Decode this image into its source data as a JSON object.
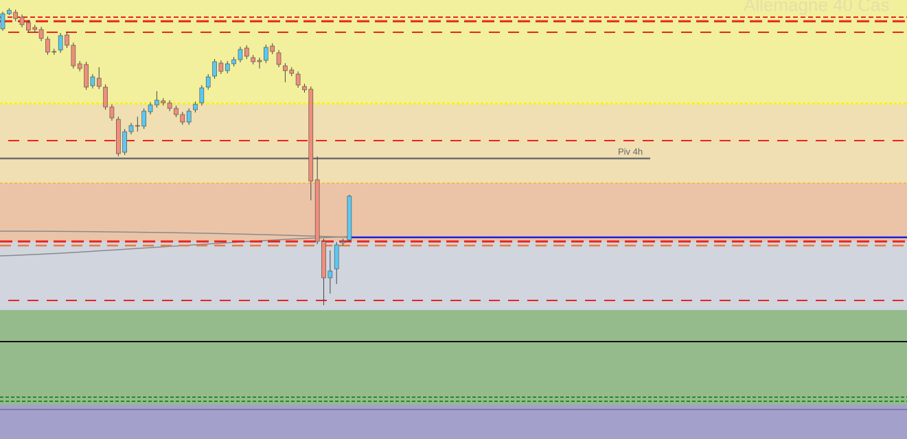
{
  "chart_data": {
    "type": "candlestick",
    "title": "Allemagne 40 Cas",
    "up_color": "#5bc8f2",
    "down_color": "#ef8e7c",
    "ylim": [
      0,
      640
    ],
    "open": [
      598,
      620,
      622,
      615,
      607,
      600,
      597,
      583,
      565,
      567,
      589,
      574,
      547,
      546,
      515,
      526,
      513,
      484,
      466,
      418,
      448,
      457,
      456,
      477,
      487,
      493,
      490,
      482,
      473,
      462,
      480,
      490,
      513,
      529,
      548,
      537,
      547,
      553,
      570,
      556,
      552,
      552,
      573,
      563,
      544,
      538,
      532,
      514,
      510,
      378,
      288,
      235,
      248,
      288,
      290
    ],
    "high": [
      623,
      628,
      626,
      619,
      611,
      604,
      601,
      587,
      569,
      592,
      593,
      578,
      551,
      550,
      532,
      542,
      517,
      488,
      470,
      452,
      461,
      470,
      482,
      491,
      507,
      497,
      494,
      486,
      477,
      482,
      492,
      516,
      532,
      554,
      552,
      551,
      557,
      572,
      574,
      560,
      556,
      575,
      577,
      567,
      548,
      542,
      536,
      518,
      514,
      412,
      292,
      275,
      287,
      292,
      356
    ],
    "low": [
      595,
      618,
      609,
      600,
      592,
      593,
      580,
      560,
      560,
      563,
      570,
      540,
      536,
      509,
      511,
      510,
      480,
      464,
      412,
      414,
      444,
      448,
      452,
      473,
      483,
      486,
      478,
      469,
      458,
      458,
      476,
      486,
      509,
      525,
      532,
      533,
      543,
      549,
      554,
      546,
      540,
      548,
      561,
      542,
      520,
      529,
      512,
      505,
      348,
      284,
      195,
      212,
      226,
      282,
      288
    ],
    "close": [
      620,
      625,
      613,
      604,
      596,
      597,
      584,
      564,
      564,
      588,
      574,
      544,
      540,
      513,
      528,
      514,
      484,
      468,
      416,
      448,
      457,
      456,
      478,
      487,
      494,
      490,
      482,
      473,
      462,
      478,
      488,
      512,
      528,
      550,
      536,
      547,
      553,
      568,
      558,
      550,
      550,
      571,
      565,
      546,
      537,
      533,
      516,
      509,
      376,
      288,
      235,
      245,
      283,
      286,
      354
    ],
    "pivot": {
      "label": "Piv 4h",
      "value": 409
    }
  }
}
